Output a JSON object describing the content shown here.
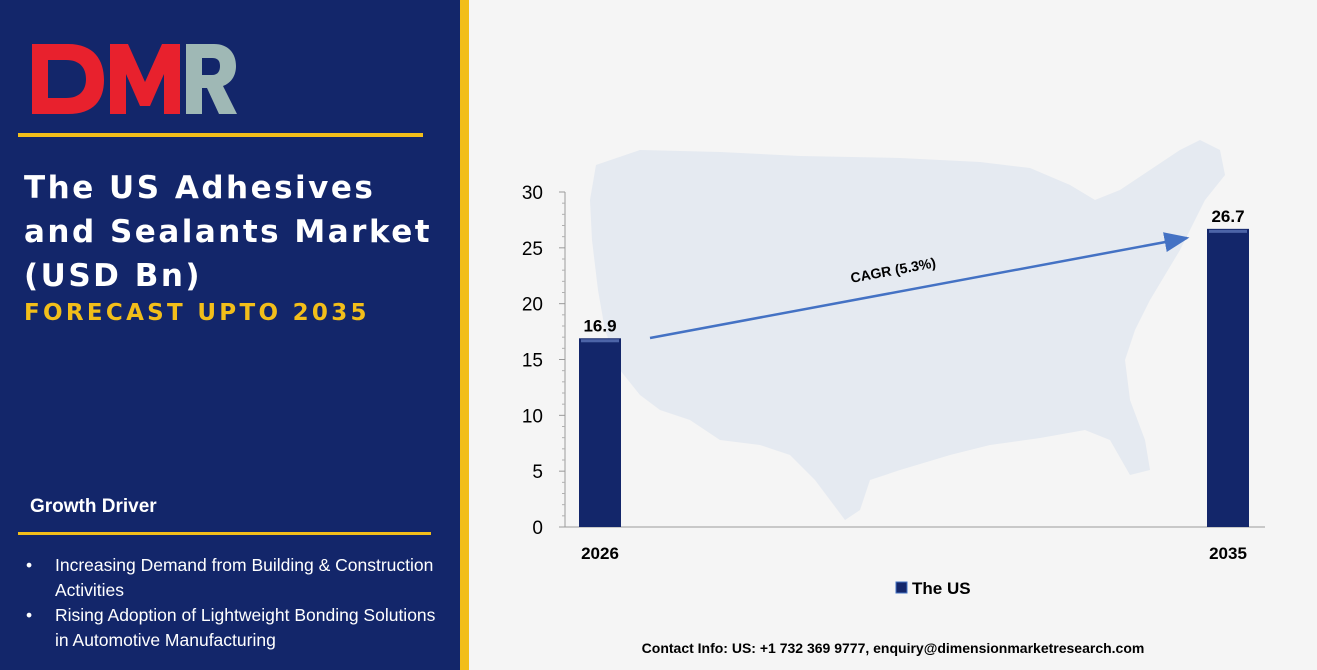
{
  "brand": {
    "logo_text": "DMR",
    "logo_color_d": "#e8212d",
    "logo_color_m": "#e8212d",
    "logo_color_r": "#9fb8b5"
  },
  "header": {
    "title_lines": [
      "The US Adhesives",
      "and Sealants Market",
      "(USD Bn)"
    ],
    "subtitle": "FORECAST UPTO 2035"
  },
  "growth_driver": {
    "heading": "Growth Driver",
    "items": [
      "Increasing Demand from Building & Construction Activities",
      "Rising Adoption of Lightweight Bonding Solutions in Automotive Manufacturing"
    ]
  },
  "chart_data": {
    "type": "bar",
    "categories": [
      "2026",
      "2035"
    ],
    "series": [
      {
        "name": "The US",
        "values": [
          16.9,
          26.7
        ]
      }
    ],
    "data_labels": [
      "16.9",
      "26.7"
    ],
    "ylim": [
      0,
      30
    ],
    "yticks": [
      0,
      5,
      10,
      15,
      20,
      25,
      30
    ],
    "annotation": "CAGR (5.3%)",
    "legend_position": "bottom",
    "grid": false,
    "bar_color": "#13266a",
    "arrow_color": "#4472c4"
  },
  "footer": {
    "contact": "Contact Info: US: +1 732 369 9777, enquiry@dimensionmarketresearch.com"
  },
  "colors": {
    "panel": "#13266a",
    "accent": "#f2be1a",
    "background": "#f5f5f5"
  }
}
